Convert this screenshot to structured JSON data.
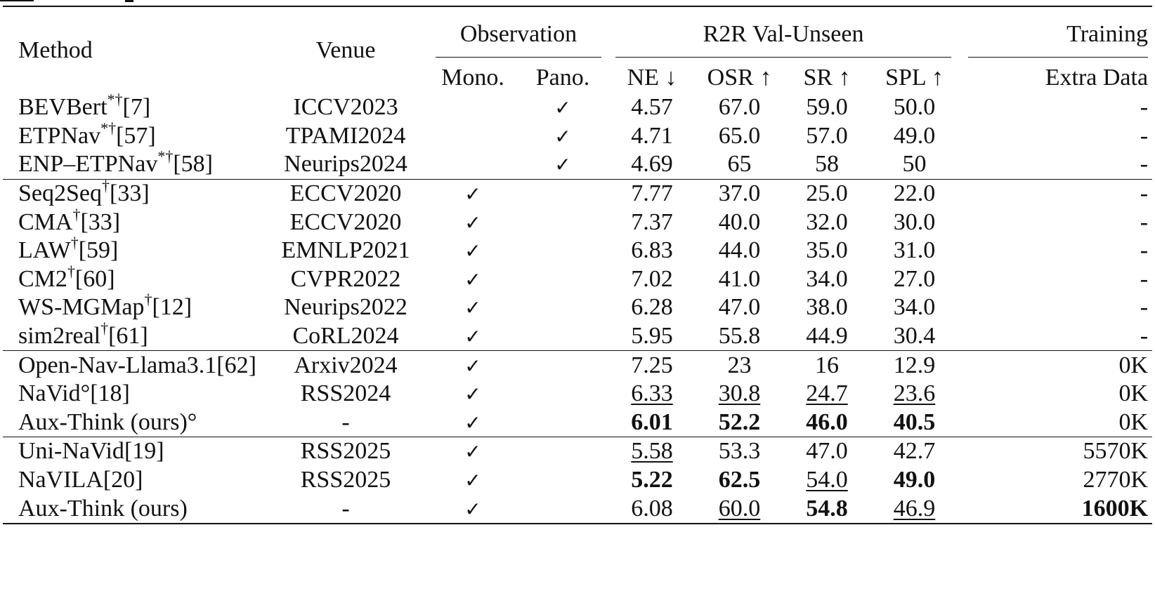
{
  "table": {
    "headers": {
      "method": "Method",
      "venue": "Venue",
      "observation": "Observation",
      "r2r": "R2R Val-Unseen",
      "training": "Training",
      "mono": "Mono.",
      "pano": "Pano.",
      "ne": "NE ↓",
      "osr": "OSR ↑",
      "sr": "SR ↑",
      "spl": "SPL ↑",
      "extra": "Extra Data"
    },
    "check_mark": "✓",
    "groups": [
      [
        {
          "name": "BEVBert",
          "sup": "*†",
          "ref": "[7]",
          "venue": "ICCV2023",
          "mono": "",
          "pano": "✓",
          "ne": "4.57",
          "osr": "67.0",
          "sr": "59.0",
          "spl": "50.0",
          "extra": "-"
        },
        {
          "name": "ETPNav",
          "sup": "*†",
          "ref": "[57]",
          "venue": "TPAMI2024",
          "mono": "",
          "pano": "✓",
          "ne": "4.71",
          "osr": "65.0",
          "sr": "57.0",
          "spl": "49.0",
          "extra": "-"
        },
        {
          "name": "ENP–ETPNav",
          "sup": "*†",
          "ref": "[58]",
          "venue": "Neurips2024",
          "mono": "",
          "pano": "✓",
          "ne": "4.69",
          "osr": "65",
          "sr": "58",
          "spl": "50",
          "extra": "-"
        }
      ],
      [
        {
          "name": "Seq2Seq",
          "sup": "†",
          "ref": "[33]",
          "venue": "ECCV2020",
          "mono": "✓",
          "pano": "",
          "ne": "7.77",
          "osr": "37.0",
          "sr": "25.0",
          "spl": "22.0",
          "extra": "-"
        },
        {
          "name": "CMA",
          "sup": "†",
          "ref": "[33]",
          "venue": "ECCV2020",
          "mono": "✓",
          "pano": "",
          "ne": "7.37",
          "osr": "40.0",
          "sr": "32.0",
          "spl": "30.0",
          "extra": "-"
        },
        {
          "name": "LAW",
          "sup": "†",
          "ref": "[59]",
          "venue": "EMNLP2021",
          "mono": "✓",
          "pano": "",
          "ne": "6.83",
          "osr": "44.0",
          "sr": "35.0",
          "spl": "31.0",
          "extra": "-"
        },
        {
          "name": "CM2",
          "sup": "†",
          "ref": "[60]",
          "venue": "CVPR2022",
          "mono": "✓",
          "pano": "",
          "ne": "7.02",
          "osr": "41.0",
          "sr": "34.0",
          "spl": "27.0",
          "extra": "-"
        },
        {
          "name": "WS-MGMap",
          "sup": "†",
          "ref": "[12]",
          "venue": "Neurips2022",
          "mono": "✓",
          "pano": "",
          "ne": "6.28",
          "osr": "47.0",
          "sr": "38.0",
          "spl": "34.0",
          "extra": "-"
        },
        {
          "name": "sim2real",
          "sup": "†",
          "ref": "[61]",
          "venue": "CoRL2024",
          "mono": "✓",
          "pano": "",
          "ne": "5.95",
          "osr": "55.8",
          "sr": "44.9",
          "spl": "30.4",
          "extra": "-"
        }
      ],
      [
        {
          "name": "Open-Nav-Llama3.1",
          "sup": "",
          "ref": "[62]",
          "venue": "Arxiv2024",
          "mono": "✓",
          "pano": "",
          "ne": "7.25",
          "osr": "23",
          "sr": "16",
          "spl": "12.9",
          "extra": "0K"
        },
        {
          "name": "NaVid°",
          "sup": "",
          "ref": "[18]",
          "venue": "RSS2024",
          "mono": "✓",
          "pano": "",
          "ne": "6.33",
          "osr": "30.8",
          "sr": "24.7",
          "spl": "23.6",
          "extra": "0K"
        },
        {
          "name": "Aux-Think (ours)°",
          "sup": "",
          "ref": "",
          "venue": "-",
          "mono": "✓",
          "pano": "",
          "ne": "6.01",
          "osr": "52.2",
          "sr": "46.0",
          "spl": "40.5",
          "extra": "0K"
        }
      ],
      [
        {
          "name": "Uni-NaVid",
          "sup": "",
          "ref": "[19]",
          "venue": "RSS2025",
          "mono": "✓",
          "pano": "",
          "ne": "5.58",
          "osr": "53.3",
          "sr": "47.0",
          "spl": "42.7",
          "extra": "5570K"
        },
        {
          "name": "NaVILA",
          "sup": "",
          "ref": "[20]",
          "venue": "RSS2025",
          "mono": "✓",
          "pano": "",
          "ne": "5.22",
          "osr": "62.5",
          "sr": "54.0",
          "spl": "49.0",
          "extra": "2770K"
        },
        {
          "name": "Aux-Think (ours)",
          "sup": "",
          "ref": "",
          "venue": "-",
          "mono": "✓",
          "pano": "",
          "ne": "6.08",
          "osr": "60.0",
          "sr": "54.8",
          "spl": "46.9",
          "extra": "1600K"
        }
      ]
    ]
  }
}
